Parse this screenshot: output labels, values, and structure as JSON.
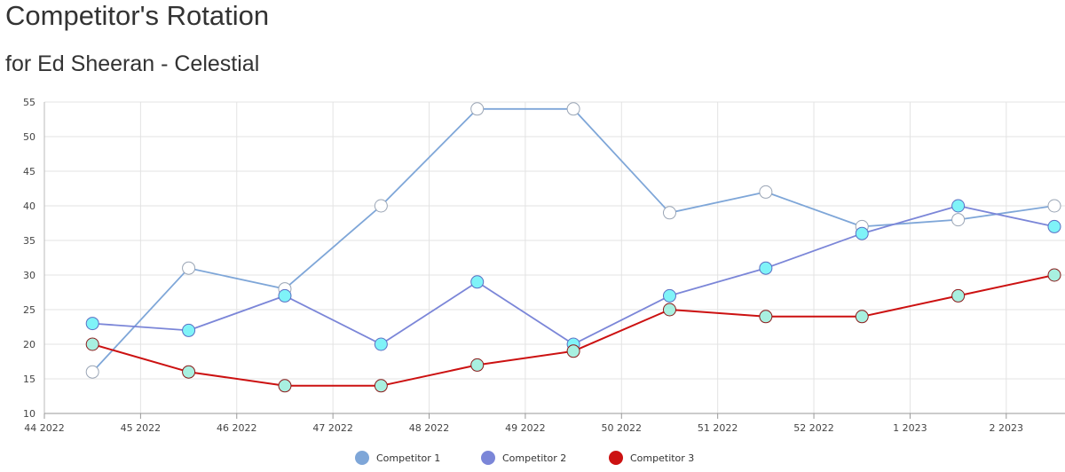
{
  "header": {
    "title": "Competitor's Rotation",
    "subtitle": "for Ed Sheeran - Celestial"
  },
  "chart_data": {
    "type": "line",
    "x_ticks": [
      "44 2022",
      "45 2022",
      "46 2022",
      "47 2022",
      "48 2022",
      "49 2022",
      "50 2022",
      "51 2022",
      "52 2022",
      "1 2023",
      "2 2023"
    ],
    "x_points": [
      44.5,
      45.5,
      46.5,
      47.5,
      48.5,
      49.5,
      50.5,
      51.5,
      52.5,
      53.5,
      54.5
    ],
    "ylim": [
      10,
      55
    ],
    "y_ticks": [
      10,
      15,
      20,
      25,
      30,
      35,
      40,
      45,
      50,
      55
    ],
    "grid": true,
    "legend_position": "bottom-center",
    "series": [
      {
        "name": "Competitor 1",
        "color": "#7ea6d8",
        "marker_fill": "#ffffff",
        "marker_stroke": "#9aa5b5",
        "values": [
          16,
          31,
          28,
          40,
          54,
          54,
          39,
          42,
          37,
          38,
          40
        ]
      },
      {
        "name": "Competitor 2",
        "color": "#7b86d8",
        "marker_fill": "#7ff3f8",
        "marker_stroke": "#5a6fc4",
        "values": [
          23,
          22,
          27,
          20,
          29,
          20,
          27,
          31,
          36,
          40,
          37
        ]
      },
      {
        "name": "Competitor 3",
        "color": "#cc1111",
        "marker_fill": "#a8f0e0",
        "marker_stroke": "#8b1a1a",
        "values": [
          20,
          16,
          14,
          14,
          17,
          19,
          25,
          24,
          24,
          27,
          30
        ]
      }
    ]
  }
}
